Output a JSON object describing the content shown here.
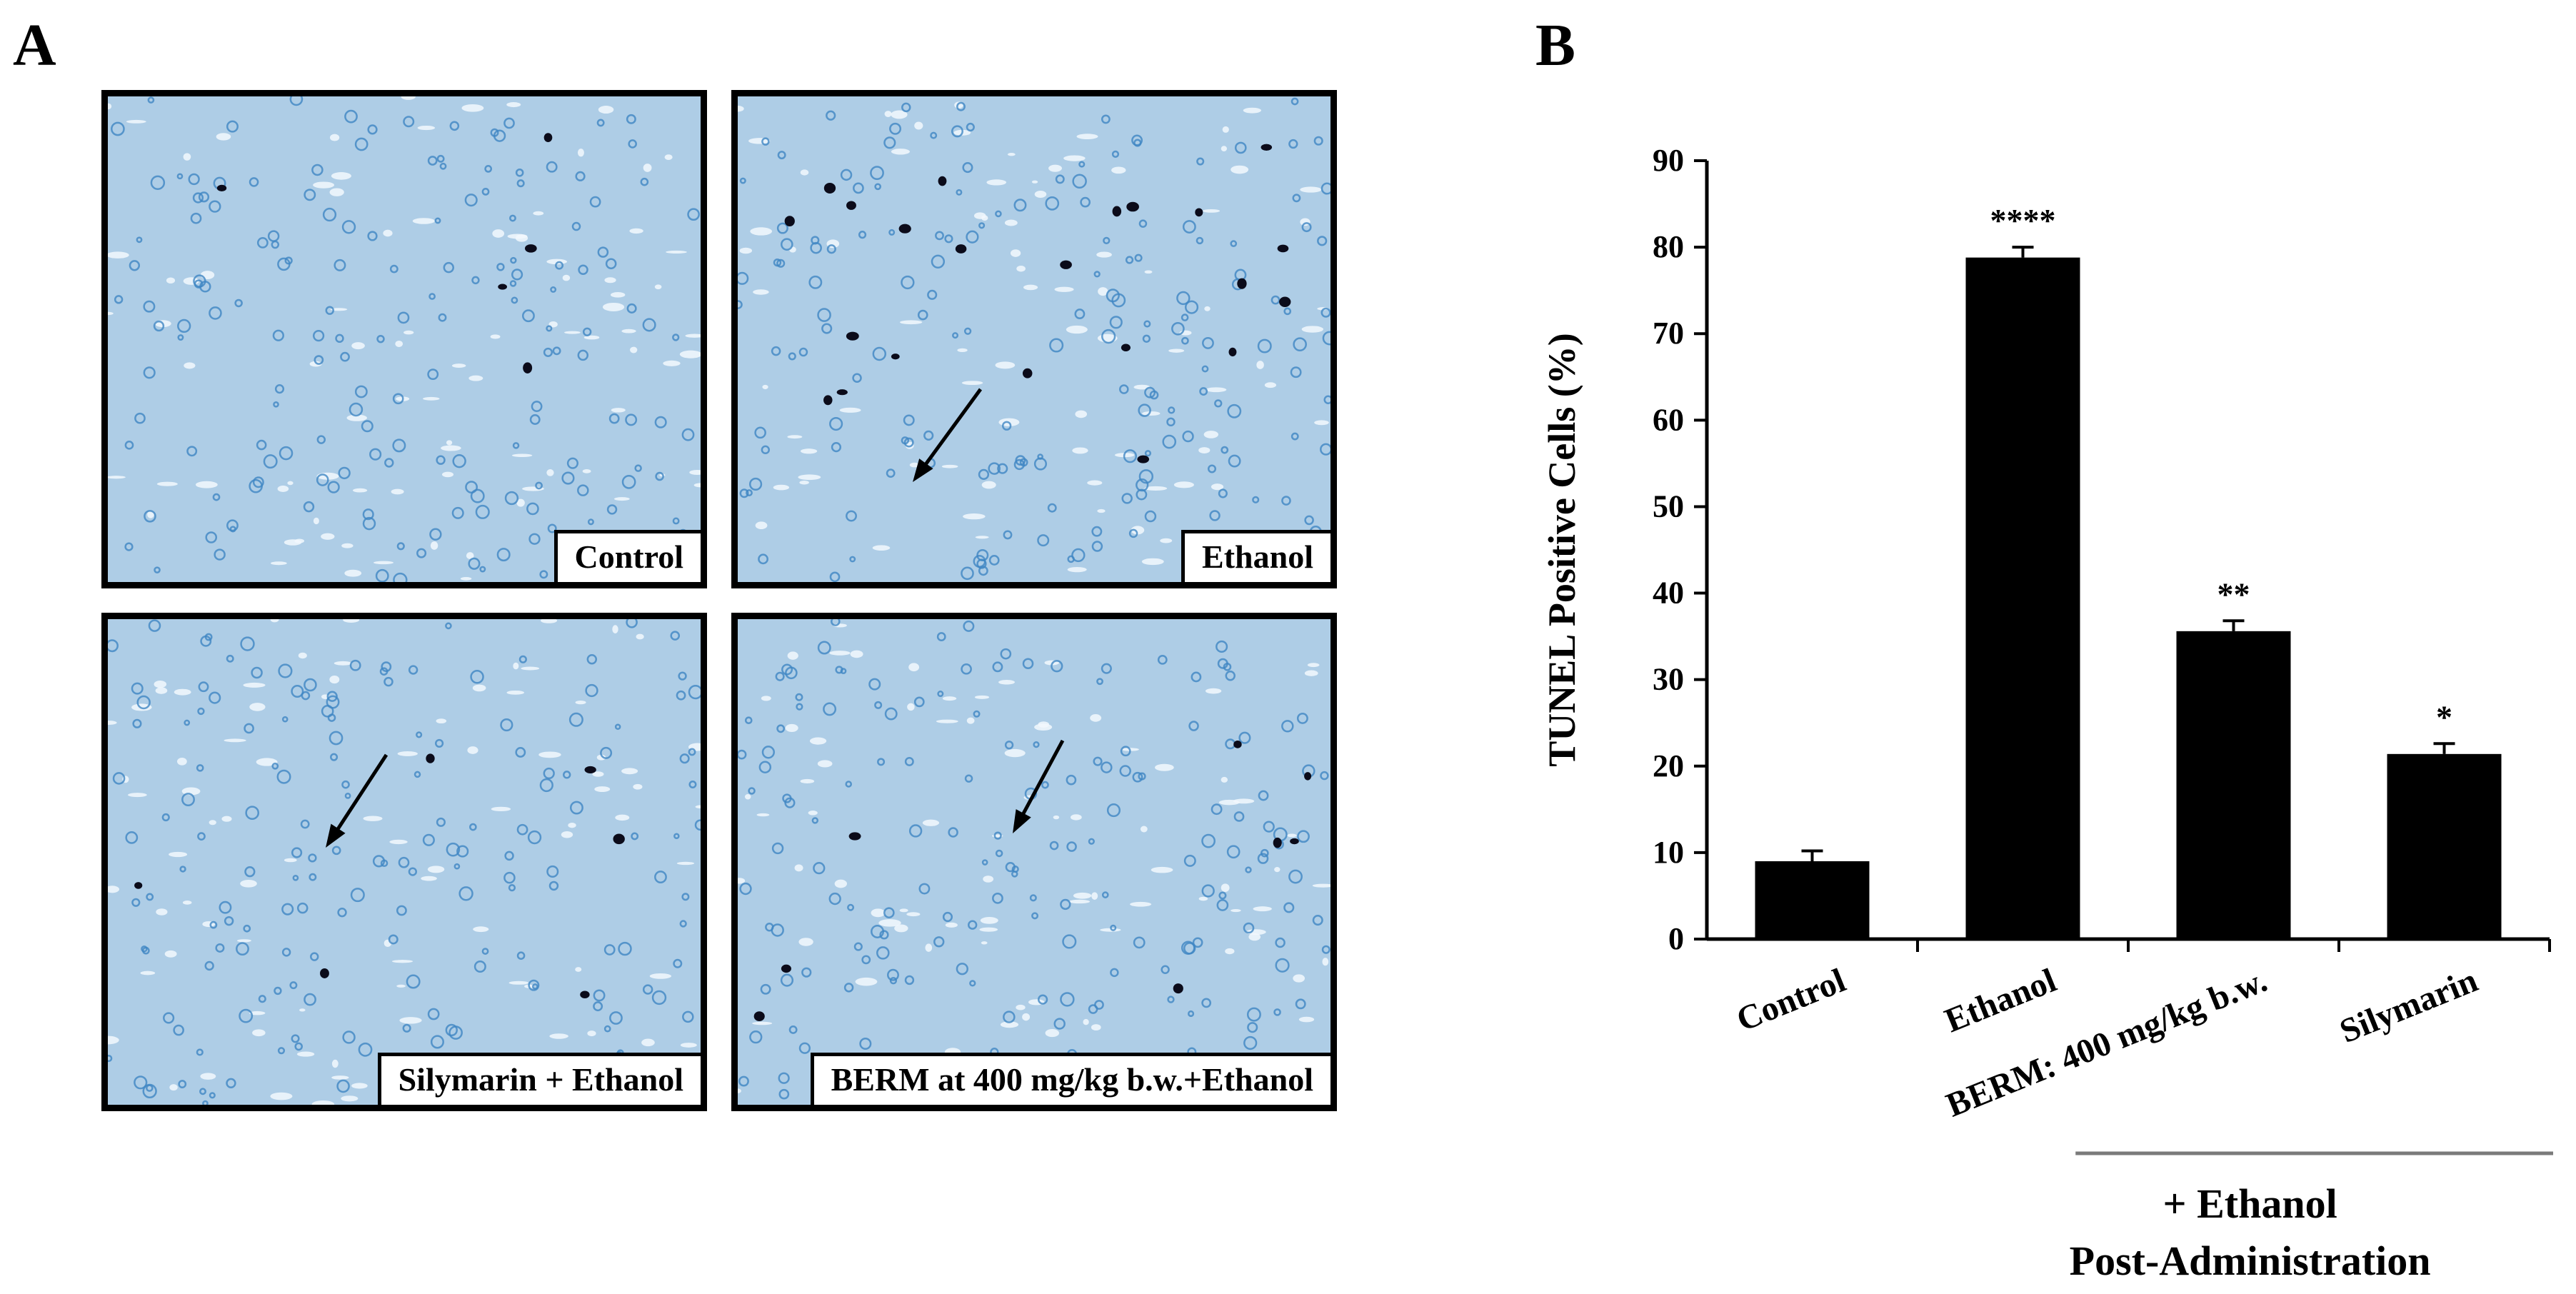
{
  "panel_a": {
    "label": "A",
    "images": [
      {
        "caption": "Control"
      },
      {
        "caption": "Ethanol"
      },
      {
        "caption": "Silymarin + Ethanol"
      },
      {
        "caption": "BERM at 400 mg/kg b.w.+Ethanol"
      }
    ]
  },
  "panel_b": {
    "label": "B"
  },
  "chart_data": {
    "type": "bar",
    "categories": [
      "Control",
      "Ethanol",
      "BERM: 400 mg/kg b.w.",
      "Silymarin"
    ],
    "values": [
      9,
      78.8,
      35.6,
      21.4
    ],
    "errors": [
      1.2,
      1.2,
      1.2,
      1.2
    ],
    "significance": [
      "",
      "****",
      "**",
      "*"
    ],
    "ylabel": "TUNEL Positive Cells (%)",
    "xlabel": "",
    "ylim": [
      0,
      90
    ],
    "yticks": [
      0,
      10,
      20,
      30,
      40,
      50,
      60,
      70,
      80,
      90
    ],
    "bar_color": "#000000",
    "group_label": [
      "+ Ethanol",
      "Post-Administration"
    ],
    "grid": false
  }
}
